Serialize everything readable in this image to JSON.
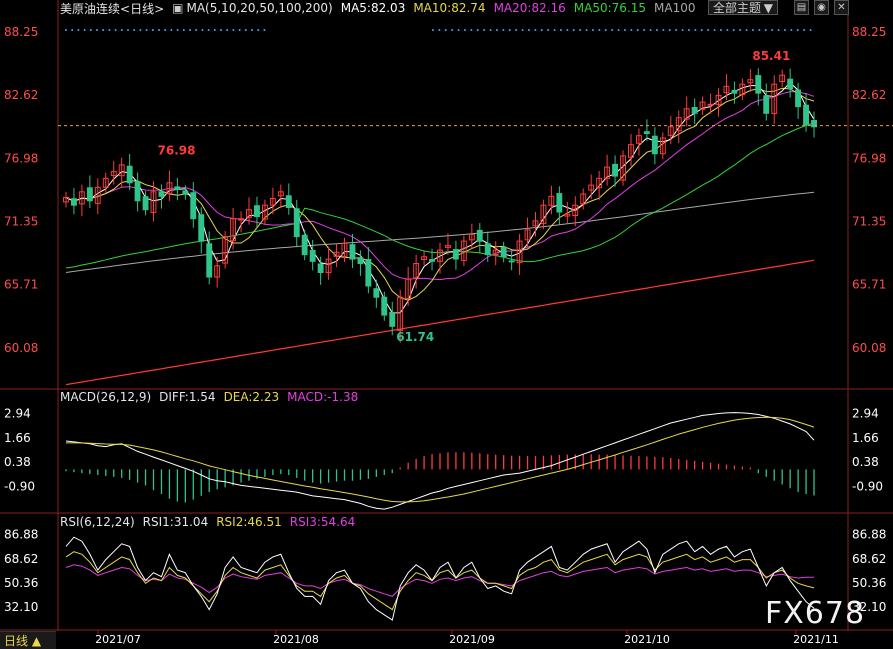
{
  "header": {
    "symbol": "美原油连续",
    "period": "<日线>",
    "ma_label": "MA(5,10,20,50,100,200)",
    "ma5": "MA5:82.03",
    "ma10": "MA10:82.74",
    "ma20": "MA20:82.16",
    "ma50": "MA50:76.15",
    "ma100": "MA100",
    "theme": "全部主题",
    "theme_icon": "chevron-down-icon"
  },
  "macd_header": {
    "title": "MACD(26,12,9)",
    "diff": "DIFF:1.54",
    "dea": "DEA:2.23",
    "macd": "MACD:-1.38"
  },
  "rsi_header": {
    "title": "RSI(6,12,24)",
    "rsi1": "RSI1:31.04",
    "rsi2": "RSI2:46.51",
    "rsi3": "RSI3:54.64"
  },
  "footer": {
    "period_button": "日线 ▲",
    "watermark": "FX678"
  },
  "colors": {
    "up": "#ff3b3b",
    "down": "#2ec48a",
    "ma5": "#ffffff",
    "ma10": "#e8d84a",
    "ma20": "#e040e0",
    "ma50": "#36d236",
    "ma100": "#a8a8a8",
    "ma200": "#ff3b2f",
    "axis_text": "#ff4d4d",
    "rsi_axis_text": "#ffffff"
  },
  "chart_data": [
    {
      "type": "candlestick",
      "ylim": [
        56.5,
        89.5
      ],
      "yticks": [
        "88.25",
        "82.62",
        "76.98",
        "71.35",
        "65.71",
        "60.08"
      ],
      "x_labels": [
        "2021/07",
        "2021/08",
        "2021/09",
        "2021/10",
        "2021/11"
      ],
      "annotations": [
        {
          "text": "76.98",
          "kind": "high"
        },
        {
          "text": "61.74",
          "kind": "low"
        },
        {
          "text": "85.41",
          "kind": "high"
        }
      ],
      "last_price_line": 79.9,
      "close": [
        73.5,
        72.8,
        74.0,
        73.2,
        74.4,
        75.2,
        75.8,
        76.4,
        74.8,
        73.2,
        72.4,
        74.0,
        73.6,
        74.8,
        74.2,
        73.8,
        71.6,
        69.6,
        66.4,
        67.4,
        70.0,
        71.6,
        71.6,
        72.4,
        71.8,
        72.8,
        73.4,
        74.0,
        72.6,
        70.0,
        68.4,
        67.8,
        66.8,
        68.0,
        68.6,
        69.4,
        68.0,
        67.6,
        65.6,
        64.6,
        63.0,
        62.0,
        64.6,
        66.2,
        67.6,
        68.2,
        67.8,
        68.8,
        69.2,
        68.0,
        69.6,
        70.2,
        69.6,
        68.4,
        68.8,
        68.2,
        67.8,
        69.6,
        70.6,
        71.4,
        72.8,
        73.6,
        72.2,
        72.0,
        72.8,
        73.8,
        74.6,
        75.2,
        76.2,
        75.4,
        77.2,
        78.2,
        79.0,
        79.2,
        77.4,
        78.8,
        79.8,
        80.6,
        81.4,
        81.0,
        82.0,
        81.8,
        82.6,
        83.4,
        82.8,
        83.6,
        84.0,
        82.8,
        81.0,
        83.6,
        84.4,
        83.2,
        81.6,
        80.0,
        79.8
      ]
    },
    {
      "type": "bar",
      "name": "MACD",
      "ylim": [
        -2.2,
        3.4
      ],
      "yticks": [
        "2.94",
        "1.66",
        "0.38",
        "-0.90"
      ],
      "macd": [
        -0.1,
        -0.15,
        -0.2,
        -0.25,
        -0.3,
        -0.35,
        -0.4,
        -0.45,
        -0.55,
        -0.7,
        -0.85,
        -1.1,
        -1.3,
        -1.55,
        -1.7,
        -1.75,
        -1.6,
        -1.4,
        -1.2,
        -1.05,
        -0.95,
        -0.85,
        -0.7,
        -0.6,
        -0.5,
        -0.4,
        -0.3,
        -0.25,
        -0.3,
        -0.45,
        -0.6,
        -0.7,
        -0.75,
        -0.7,
        -0.65,
        -0.6,
        -0.6,
        -0.55,
        -0.5,
        -0.4,
        -0.3,
        -0.2,
        0.1,
        0.35,
        0.55,
        0.7,
        0.8,
        0.85,
        0.9,
        0.9,
        0.9,
        0.88,
        0.85,
        0.8,
        0.78,
        0.75,
        0.72,
        0.72,
        0.7,
        0.7,
        0.72,
        0.74,
        0.76,
        0.78,
        0.78,
        0.8,
        0.8,
        0.78,
        0.78,
        0.76,
        0.74,
        0.72,
        0.7,
        0.68,
        0.66,
        0.64,
        0.6,
        0.55,
        0.5,
        0.45,
        0.4,
        0.35,
        0.3,
        0.25,
        0.2,
        0.15,
        0.1,
        -0.2,
        -0.4,
        -0.6,
        -0.8,
        -1.0,
        -1.2,
        -1.3,
        -1.38
      ],
      "diff": [
        1.5,
        1.45,
        1.4,
        1.35,
        1.25,
        1.2,
        1.3,
        1.35,
        1.15,
        0.95,
        0.8,
        0.65,
        0.5,
        0.35,
        0.2,
        0.05,
        -0.1,
        -0.3,
        -0.5,
        -0.6,
        -0.65,
        -0.75,
        -0.85,
        -0.9,
        -0.95,
        -1.0,
        -1.05,
        -1.1,
        -1.15,
        -1.2,
        -1.3,
        -1.4,
        -1.45,
        -1.5,
        -1.55,
        -1.6,
        -1.7,
        -1.8,
        -1.95,
        -2.05,
        -2.1,
        -2.0,
        -1.85,
        -1.7,
        -1.55,
        -1.4,
        -1.25,
        -1.15,
        -1.0,
        -0.9,
        -0.8,
        -0.7,
        -0.6,
        -0.5,
        -0.4,
        -0.3,
        -0.25,
        -0.2,
        -0.1,
        0.0,
        0.1,
        0.2,
        0.35,
        0.5,
        0.65,
        0.8,
        0.95,
        1.1,
        1.25,
        1.4,
        1.55,
        1.7,
        1.85,
        2.0,
        2.15,
        2.3,
        2.45,
        2.55,
        2.65,
        2.75,
        2.85,
        2.9,
        2.95,
        2.98,
        3.0,
        2.98,
        2.95,
        2.9,
        2.8,
        2.7,
        2.55,
        2.4,
        2.2,
        2.0,
        1.54
      ],
      "dea": [
        1.4,
        1.4,
        1.4,
        1.38,
        1.36,
        1.34,
        1.33,
        1.32,
        1.28,
        1.2,
        1.12,
        1.03,
        0.92,
        0.8,
        0.68,
        0.56,
        0.45,
        0.32,
        0.18,
        0.08,
        -0.02,
        -0.12,
        -0.22,
        -0.32,
        -0.4,
        -0.48,
        -0.56,
        -0.64,
        -0.72,
        -0.8,
        -0.88,
        -0.95,
        -1.02,
        -1.09,
        -1.16,
        -1.23,
        -1.3,
        -1.38,
        -1.46,
        -1.55,
        -1.63,
        -1.7,
        -1.72,
        -1.72,
        -1.7,
        -1.66,
        -1.6,
        -1.53,
        -1.46,
        -1.38,
        -1.3,
        -1.2,
        -1.1,
        -1.0,
        -0.9,
        -0.8,
        -0.7,
        -0.6,
        -0.5,
        -0.4,
        -0.3,
        -0.2,
        -0.1,
        0.0,
        0.12,
        0.25,
        0.38,
        0.5,
        0.63,
        0.76,
        0.9,
        1.03,
        1.16,
        1.3,
        1.44,
        1.58,
        1.72,
        1.86,
        1.98,
        2.1,
        2.22,
        2.33,
        2.43,
        2.52,
        2.6,
        2.66,
        2.71,
        2.74,
        2.75,
        2.74,
        2.7,
        2.63,
        2.5,
        2.37,
        2.23
      ]
    },
    {
      "type": "line",
      "name": "RSI",
      "ylim": [
        16,
        92
      ],
      "yticks": [
        "86.88",
        "68.62",
        "50.36",
        "32.10"
      ],
      "rsi1": [
        78,
        85,
        82,
        72,
        60,
        68,
        74,
        80,
        78,
        62,
        52,
        58,
        55,
        72,
        60,
        58,
        48,
        40,
        30,
        42,
        62,
        70,
        62,
        60,
        58,
        66,
        70,
        72,
        58,
        46,
        40,
        40,
        34,
        52,
        58,
        60,
        50,
        46,
        36,
        30,
        26,
        22,
        48,
        58,
        64,
        60,
        52,
        62,
        66,
        54,
        62,
        66,
        54,
        46,
        48,
        44,
        42,
        60,
        66,
        70,
        74,
        78,
        62,
        60,
        66,
        72,
        76,
        78,
        80,
        66,
        74,
        78,
        82,
        76,
        58,
        72,
        76,
        80,
        82,
        74,
        78,
        72,
        76,
        78,
        70,
        74,
        76,
        62,
        48,
        58,
        62,
        52,
        44,
        36,
        31
      ],
      "rsi2": [
        70,
        74,
        72,
        66,
        58,
        62,
        66,
        70,
        68,
        58,
        50,
        54,
        52,
        62,
        56,
        54,
        48,
        42,
        36,
        44,
        56,
        62,
        58,
        56,
        54,
        60,
        62,
        64,
        56,
        48,
        44,
        44,
        40,
        50,
        54,
        56,
        50,
        48,
        42,
        38,
        34,
        30,
        44,
        52,
        58,
        56,
        52,
        58,
        60,
        54,
        58,
        60,
        54,
        50,
        50,
        48,
        46,
        56,
        60,
        62,
        66,
        68,
        60,
        58,
        62,
        66,
        68,
        70,
        72,
        64,
        68,
        70,
        72,
        70,
        60,
        66,
        68,
        70,
        72,
        68,
        70,
        66,
        68,
        70,
        66,
        68,
        68,
        62,
        54,
        58,
        60,
        54,
        50,
        48,
        46.5
      ],
      "rsi3": [
        62,
        64,
        63,
        60,
        56,
        58,
        60,
        62,
        61,
        56,
        52,
        53,
        52,
        57,
        54,
        53,
        50,
        47,
        43,
        47,
        54,
        57,
        55,
        54,
        53,
        56,
        57,
        58,
        54,
        50,
        48,
        48,
        46,
        50,
        52,
        53,
        50,
        49,
        46,
        44,
        42,
        40,
        46,
        50,
        53,
        52,
        50,
        53,
        54,
        52,
        54,
        55,
        52,
        50,
        50,
        49,
        48,
        52,
        54,
        56,
        58,
        59,
        56,
        55,
        57,
        59,
        60,
        61,
        62,
        58,
        60,
        61,
        62,
        61,
        57,
        59,
        60,
        61,
        62,
        60,
        61,
        59,
        60,
        61,
        59,
        60,
        60,
        58,
        55,
        56,
        57,
        55,
        54,
        54.6,
        54.6
      ]
    }
  ]
}
